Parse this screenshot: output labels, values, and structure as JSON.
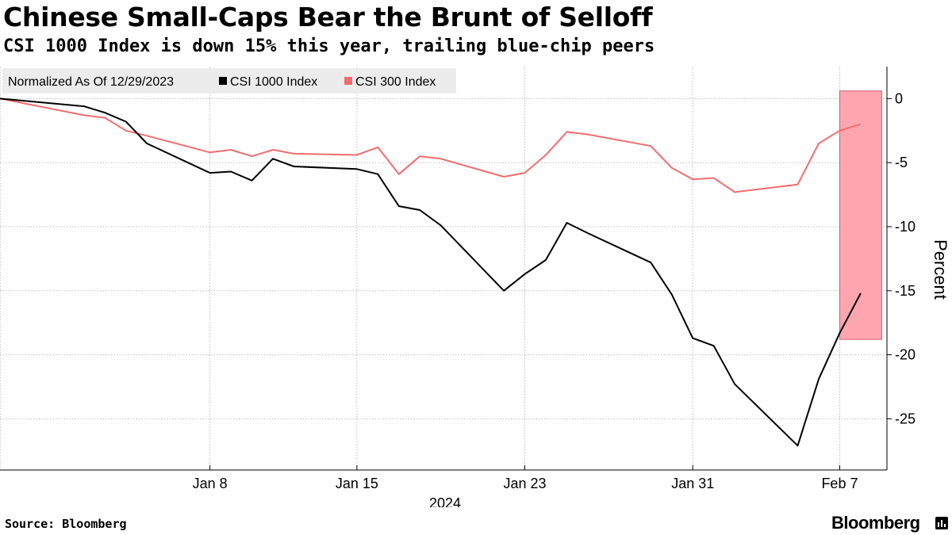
{
  "header": {
    "title": "Chinese Small-Caps Bear the Brunt of Selloff",
    "subtitle": "CSI 1000 Index  is down 15% this year, trailing blue-chip peers"
  },
  "footer": {
    "source": "Source: Bloomberg",
    "brand": "Bloomberg"
  },
  "chart_data": {
    "type": "line",
    "title": "Chinese Small-Caps Bear the Brunt of Selloff",
    "subtitle": "CSI 1000 Index  is down 15% this year, trailing blue-chip peers",
    "ylabel": "Percent",
    "xlabel": "2024",
    "legend_note": "Normalized As Of 12/29/2023",
    "legend_position": "top-left",
    "ylim": [
      -29,
      2.5
    ],
    "yticks": [
      0,
      -5,
      -10,
      -15,
      -20,
      -25
    ],
    "ytick_labels": [
      "0",
      "-5",
      "-10",
      "-15",
      "-20",
      "-25"
    ],
    "x": [
      "2023-12-29",
      "2024-01-02",
      "2024-01-03",
      "2024-01-04",
      "2024-01-05",
      "2024-01-08",
      "2024-01-09",
      "2024-01-10",
      "2024-01-11",
      "2024-01-12",
      "2024-01-15",
      "2024-01-16",
      "2024-01-17",
      "2024-01-18",
      "2024-01-19",
      "2024-01-22",
      "2024-01-23",
      "2024-01-24",
      "2024-01-25",
      "2024-01-26",
      "2024-01-29",
      "2024-01-30",
      "2024-01-31",
      "2024-02-01",
      "2024-02-02",
      "2024-02-05",
      "2024-02-06",
      "2024-02-07",
      "2024-02-08"
    ],
    "xticks": [
      {
        "date": "2024-01-08",
        "label": "Jan 8"
      },
      {
        "date": "2024-01-15",
        "label": "Jan 15"
      },
      {
        "date": "2024-01-23",
        "label": "Jan 23"
      },
      {
        "date": "2024-01-31",
        "label": "Jan 31"
      },
      {
        "date": "2024-02-07",
        "label": "Feb 7"
      }
    ],
    "year_label": "2024",
    "series": [
      {
        "name": "CSI 1000 Index",
        "color": "#000000",
        "values": [
          0,
          -0.6,
          -1.1,
          -1.8,
          -3.5,
          -5.8,
          -5.7,
          -6.4,
          -4.7,
          -5.3,
          -5.5,
          -5.9,
          -8.4,
          -8.7,
          -9.9,
          -15.0,
          -13.7,
          -12.6,
          -9.7,
          -10.5,
          -12.8,
          -15.3,
          -18.7,
          -19.3,
          -22.3,
          -27.1,
          -21.9,
          -18.3,
          -15.2
        ]
      },
      {
        "name": "CSI 300 Index",
        "color": "#f26d6d",
        "values": [
          0,
          -1.3,
          -1.5,
          -2.5,
          -2.9,
          -4.2,
          -4.0,
          -4.5,
          -4.0,
          -4.3,
          -4.4,
          -3.8,
          -5.9,
          -4.5,
          -4.7,
          -6.1,
          -5.8,
          -4.4,
          -2.6,
          -2.8,
          -3.7,
          -5.4,
          -6.3,
          -6.2,
          -7.3,
          -6.7,
          -3.5,
          -2.5,
          -2.0
        ]
      }
    ],
    "highlight": {
      "from": "2024-02-07",
      "to": "2024-02-09",
      "ymin": -18.8,
      "ymax": 0.6,
      "color": "#ffa5b0"
    }
  }
}
